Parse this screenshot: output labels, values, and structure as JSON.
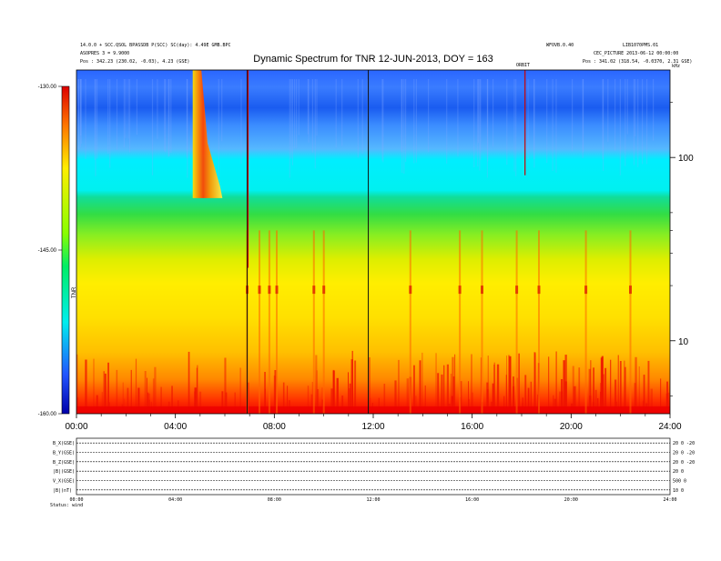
{
  "chart_data": {
    "type": "heatmap",
    "title": "Dynamic Spectrum for TNR 12-JUN-2013, DOY = 163",
    "header_left": [
      "14.0.0 + SCC.QSOL BPASSDB P(SCC) SC(day): 4.49E GMB.BPC",
      "ASOPRES 3 = 9.9000",
      "Pos : 342.23 (230.02, -0.03), 4.23 (GSE)"
    ],
    "header_right": [
      "WFOVB.0.40",
      "LIB1070PMS.01",
      "CEC_PICTURE  2013-06-12 00:00:00",
      "Pos : 341.02 (318.54, -0.0370, 2.31 GSE)"
    ],
    "header_mid_right": "ORBIT",
    "unit_top_right": "kHz",
    "x_tick_labels": [
      "00:00",
      "04:00",
      "08:00",
      "12:00",
      "16:00",
      "20:00",
      "24:00"
    ],
    "x_range_hours": [
      0,
      24
    ],
    "y_right_ticks": [
      "100",
      "10"
    ],
    "y_right_tick_values": [
      100,
      10
    ],
    "y_log_range_khz": [
      4,
      300
    ],
    "colorbar_ticks": [
      "-130.00",
      "-145.00",
      "-160.00"
    ],
    "colorbar_tick_values": [
      -130,
      -145,
      -160
    ],
    "colorbar_range": [
      -160,
      -130
    ],
    "colorbar_label": "TNR",
    "dark_vertical_lines_hours": [
      6.9,
      11.8
    ],
    "red_vertical_lines_hours": [
      6.9,
      18.1
    ],
    "bursts_hours": [
      6.9,
      7.4,
      7.8,
      8.1,
      9.6,
      10.0,
      13.5,
      15.5,
      16.4,
      17.8,
      18.7,
      20.6,
      22.4
    ],
    "type3_burst_start_hours": 4.8,
    "bottom_panel": {
      "row_labels": [
        "B_X(GSE)",
        "B_Y(GSE)",
        "B_Z(GSE)",
        "|B|(GSE)",
        "V_X(GSE)",
        "|B|(nT)"
      ],
      "row_right_labels": [
        "20 0 -20",
        "20 0 -20",
        "20 0 -20",
        "20 0",
        "500 0",
        "10 0"
      ],
      "x_tick_labels": [
        "00:00",
        "04:00",
        "08:00",
        "12:00",
        "16:00",
        "20:00",
        "24:00"
      ],
      "status_label": "Status: wind"
    },
    "colors": {
      "background": "#ffffff",
      "axis": "#000000",
      "line_dark": "#111111",
      "line_red": "#cc0000"
    }
  }
}
